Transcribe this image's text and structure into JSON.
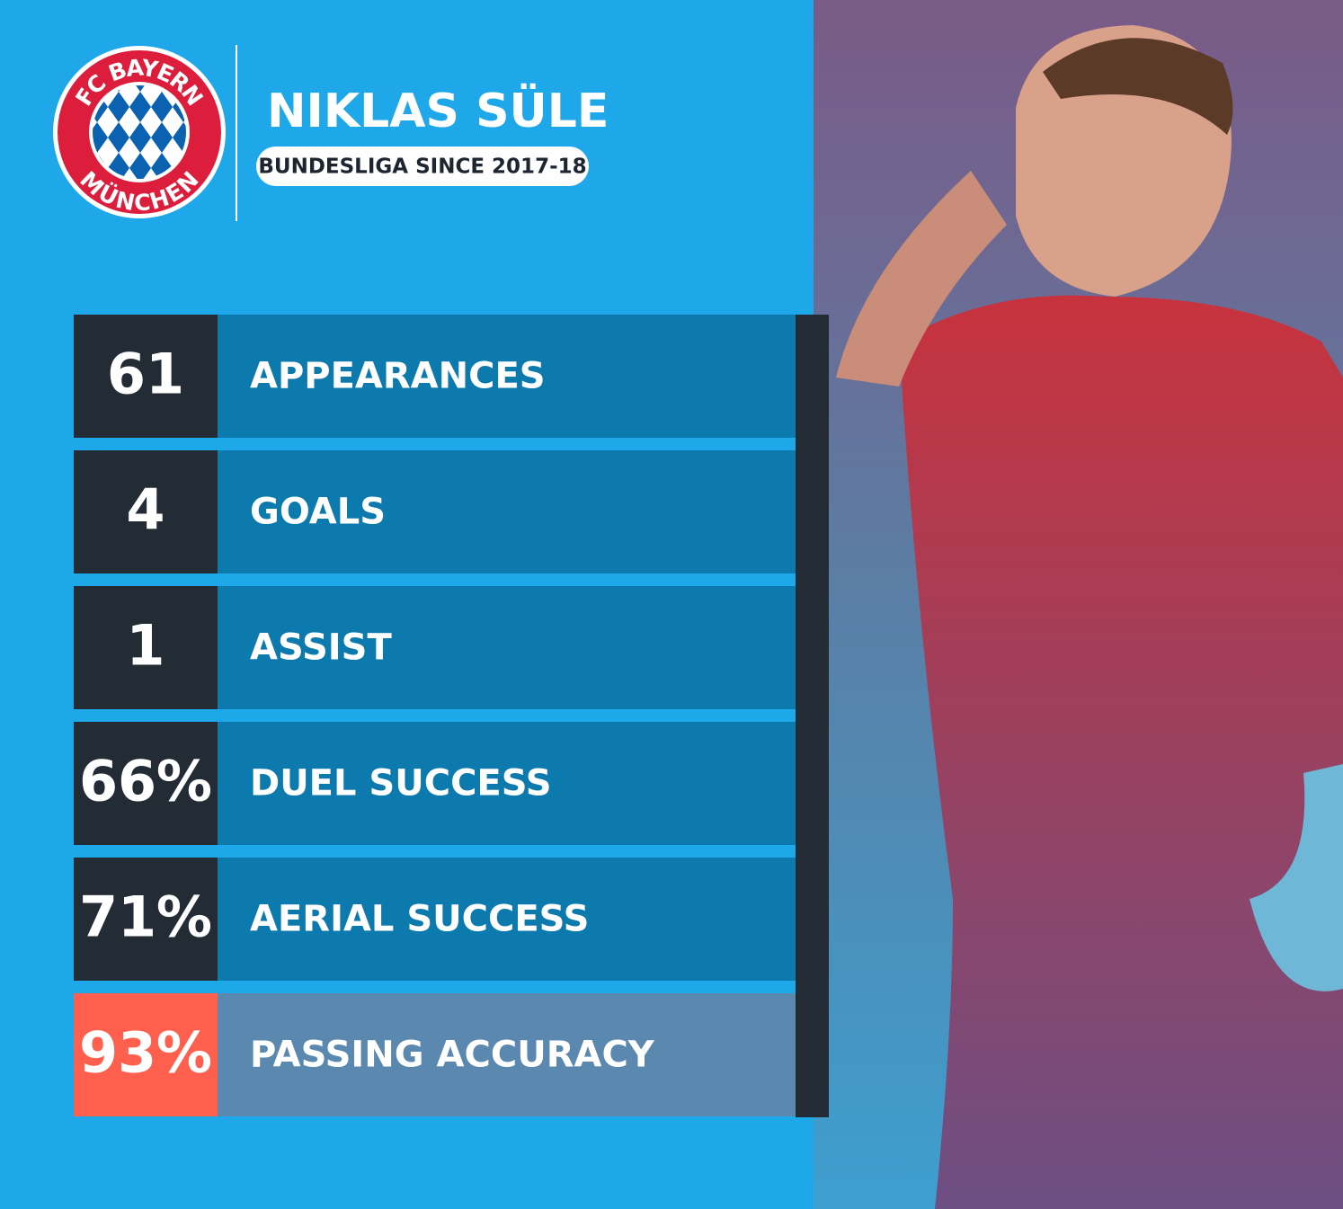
{
  "header": {
    "title": "NIKLAS SÜLE",
    "subtitle": "BUNDESLIGA SINCE 2017-18"
  },
  "logo": {
    "top": "FC BAYERN",
    "bottom": "MÜNCHEN"
  },
  "stats": [
    {
      "value": "61",
      "label": "APPEARANCES"
    },
    {
      "value": "4",
      "label": "GOALS"
    },
    {
      "value": "1",
      "label": "ASSIST"
    },
    {
      "value": "66%",
      "label": "DUEL SUCCESS"
    },
    {
      "value": "71%",
      "label": "AERIAL SUCCESS"
    },
    {
      "value": "93%",
      "label": "PASSING ACCURACY",
      "highlight": true
    }
  ]
}
